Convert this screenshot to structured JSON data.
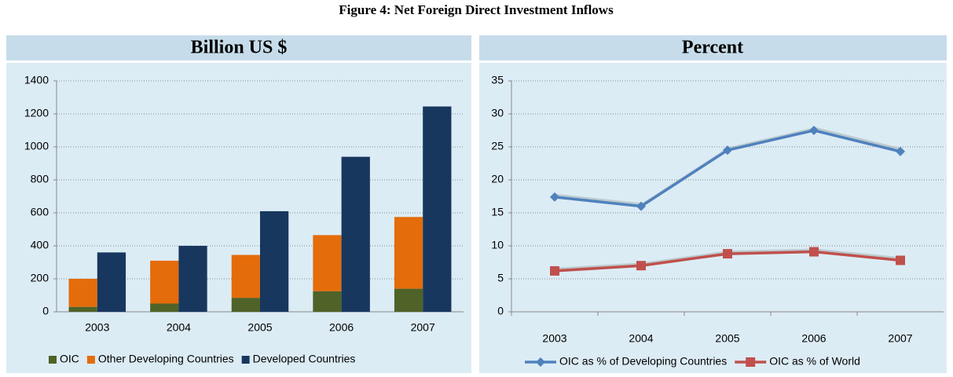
{
  "title": "Figure 4: Net Foreign Direct Investment Inflows",
  "chart_data": [
    {
      "type": "bar",
      "title": "Billion US $",
      "categories": [
        "2003",
        "2004",
        "2005",
        "2006",
        "2007"
      ],
      "series": [
        {
          "name": "OIC",
          "color": "#4f6228",
          "group": 0,
          "values": [
            30,
            50,
            85,
            125,
            140
          ]
        },
        {
          "name": "Other Developing Countries",
          "color": "#e46c0a",
          "group": 0,
          "values": [
            170,
            260,
            260,
            340,
            435
          ]
        },
        {
          "name": "Developed Countries",
          "color": "#17375e",
          "group": 1,
          "values": [
            360,
            400,
            610,
            940,
            1245
          ]
        }
      ],
      "ylim": [
        0,
        1400
      ],
      "yticks": [
        0,
        200,
        400,
        600,
        800,
        1000,
        1200,
        1400
      ],
      "grid": true,
      "legend": "bottom"
    },
    {
      "type": "line",
      "title": "Percent",
      "categories": [
        "2003",
        "2004",
        "2005",
        "2006",
        "2007"
      ],
      "series": [
        {
          "name": "OIC as % of Developing Countries",
          "color": "#4f81bd",
          "marker": "diamond",
          "values": [
            17.4,
            16,
            24.5,
            27.5,
            24.3
          ]
        },
        {
          "name": "OIC as % of World",
          "color": "#c0504d",
          "marker": "square",
          "values": [
            6.2,
            7,
            8.8,
            9.1,
            7.8
          ]
        }
      ],
      "ylim": [
        0,
        35
      ],
      "yticks": [
        0,
        5,
        10,
        15,
        20,
        25,
        30,
        35
      ],
      "grid": true,
      "legend": "bottom"
    }
  ]
}
